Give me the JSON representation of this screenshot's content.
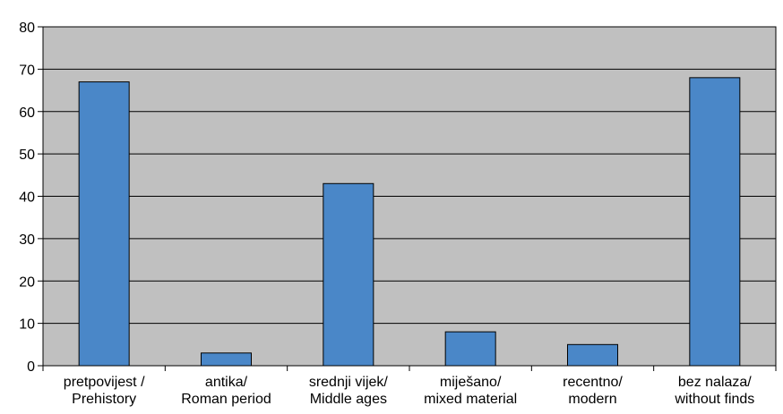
{
  "chart_data": {
    "type": "bar",
    "categories": [
      [
        "pretpovijest /",
        "Prehistory"
      ],
      [
        "antika/",
        "Roman period"
      ],
      [
        "srednji vijek/",
        "Middle ages"
      ],
      [
        "miješano/",
        "mixed material"
      ],
      [
        "recentno/",
        "modern"
      ],
      [
        "bez nalaza/",
        "without finds"
      ]
    ],
    "values": [
      67,
      3,
      43,
      8,
      5,
      68
    ],
    "ylim": [
      0,
      80
    ],
    "yticks": [
      "0",
      "10",
      "20",
      "30",
      "40",
      "50",
      "60",
      "70",
      "80"
    ],
    "grid": true,
    "legend": false,
    "title": "",
    "xlabel": "",
    "ylabel": ""
  },
  "colors": {
    "plot_background": "#c0c0c0",
    "bar_fill": "#4a87c8",
    "bar_stroke": "#000000",
    "gridline": "#000000",
    "axis": "#000000"
  }
}
